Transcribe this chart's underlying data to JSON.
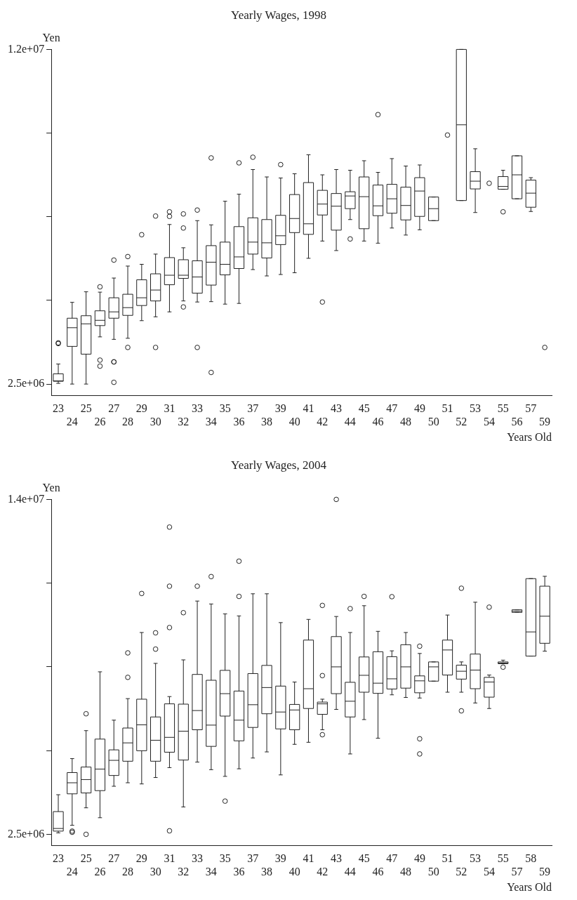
{
  "chart_data": [
    {
      "type": "box",
      "title": "Yearly Wages, 1998",
      "xlabel": "Years Old",
      "ylabel": "Yen",
      "categories": [
        "23",
        "24",
        "25",
        "26",
        "27",
        "28",
        "29",
        "30",
        "31",
        "32",
        "33",
        "34",
        "35",
        "36",
        "37",
        "38",
        "39",
        "40",
        "41",
        "42",
        "43",
        "44",
        "45",
        "46",
        "47",
        "48",
        "49",
        "50",
        "51",
        "52",
        "53",
        "54",
        "55",
        "56",
        "57",
        "59"
      ],
      "ylim": [
        2175000,
        12000000
      ],
      "yticks": [
        {
          "value": 2500000,
          "label": "2.5e+06"
        },
        {
          "value": 4875000,
          "label": null
        },
        {
          "value": 7250000,
          "label": null
        },
        {
          "value": 9625000,
          "label": null
        },
        {
          "value": 12000000,
          "label": "1.2e+07"
        }
      ],
      "boxes": [
        {
          "low": 2520000,
          "q1": 2580000,
          "median": 2590000,
          "q3": 2790000,
          "high": 3070000,
          "outliers": [
            3650000,
            3670000
          ]
        },
        {
          "low": 2500000,
          "q1": 3570000,
          "median": 4100000,
          "q3": 4370000,
          "high": 4820000
        },
        {
          "low": 2500000,
          "q1": 3350000,
          "median": 4210000,
          "q3": 4440000,
          "high": 5120000
        },
        {
          "low": 3840000,
          "q1": 4160000,
          "median": 4310000,
          "q3": 4580000,
          "high": 5110000,
          "outliers": [
            3010000,
            3180000,
            5260000
          ]
        },
        {
          "low": 3770000,
          "q1": 4370000,
          "median": 4550000,
          "q3": 4950000,
          "high": 5510000,
          "outliers": [
            2550000,
            3130000,
            3130000,
            6020000
          ]
        },
        {
          "low": 3800000,
          "q1": 4450000,
          "median": 4670000,
          "q3": 5050000,
          "high": 5850000,
          "outliers": [
            3540000,
            6120000
          ]
        },
        {
          "low": 4300000,
          "q1": 4730000,
          "median": 4950000,
          "q3": 5460000,
          "high": 5900000,
          "outliers": [
            6740000
          ]
        },
        {
          "low": 4410000,
          "q1": 4860000,
          "median": 5170000,
          "q3": 5630000,
          "high": 6190000,
          "outliers": [
            3540000,
            7270000
          ]
        },
        {
          "low": 4550000,
          "q1": 5320000,
          "median": 5590000,
          "q3": 6090000,
          "high": 7030000,
          "outliers": [
            7260000,
            7390000
          ]
        },
        {
          "low": 4860000,
          "q1": 5500000,
          "median": 5590000,
          "q3": 6030000,
          "high": 6370000,
          "outliers": [
            4690000,
            6930000,
            7330000
          ]
        },
        {
          "low": 4830000,
          "q1": 5080000,
          "median": 5540000,
          "q3": 6000000,
          "high": 7140000,
          "outliers": [
            3540000,
            7440000
          ]
        },
        {
          "low": 4840000,
          "q1": 5310000,
          "median": 5960000,
          "q3": 6430000,
          "high": 7020000,
          "outliers": [
            2830000,
            8920000
          ]
        },
        {
          "low": 4770000,
          "q1": 5600000,
          "median": 5900000,
          "q3": 6530000,
          "high": 7690000
        },
        {
          "low": 4790000,
          "q1": 5780000,
          "median": 6110000,
          "q3": 6970000,
          "high": 7890000,
          "outliers": [
            8780000
          ]
        },
        {
          "low": 5750000,
          "q1": 6190000,
          "median": 6530000,
          "q3": 7220000,
          "high": 8590000,
          "outliers": [
            8940000
          ]
        },
        {
          "low": 5570000,
          "q1": 6080000,
          "median": 6510000,
          "q3": 7170000,
          "high": 8380000
        },
        {
          "low": 5610000,
          "q1": 6460000,
          "median": 6710000,
          "q3": 7290000,
          "high": 8350000,
          "outliers": [
            8730000
          ]
        },
        {
          "low": 5660000,
          "q1": 6800000,
          "median": 7200000,
          "q3": 7880000,
          "high": 8470000
        },
        {
          "low": 6070000,
          "q1": 6750000,
          "median": 7050000,
          "q3": 8220000,
          "high": 9010000
        },
        {
          "low": 6560000,
          "q1": 7300000,
          "median": 7610000,
          "q3": 8000000,
          "high": 8440000,
          "outliers": [
            4830000
          ]
        },
        {
          "low": 6290000,
          "q1": 6870000,
          "median": 7550000,
          "q3": 7910000,
          "high": 8590000
        },
        {
          "low": 7170000,
          "q1": 7480000,
          "median": 7840000,
          "q3": 7960000,
          "high": 8570000,
          "outliers": [
            6620000
          ]
        },
        {
          "low": 6560000,
          "q1": 6910000,
          "median": 7820000,
          "q3": 8380000,
          "high": 8840000
        },
        {
          "low": 6500000,
          "q1": 7280000,
          "median": 7560000,
          "q3": 8150000,
          "high": 8510000,
          "outliers": [
            10150000
          ]
        },
        {
          "low": 6930000,
          "q1": 7350000,
          "median": 7760000,
          "q3": 8170000,
          "high": 8900000
        },
        {
          "low": 6730000,
          "q1": 7160000,
          "median": 7570000,
          "q3": 8090000,
          "high": 8690000
        },
        {
          "low": 6880000,
          "q1": 7260000,
          "median": 7980000,
          "q3": 8360000,
          "high": 8720000
        },
        {
          "low": 7140000,
          "q1": 7140000,
          "median": 7480000,
          "q3": 7810000,
          "high": 7810000
        },
        null,
        {
          "low": 7710000,
          "q1": 7710000,
          "median": 9860000,
          "q3": 12000000,
          "high": 12000000
        },
        {
          "low": 7370000,
          "q1": 8040000,
          "median": 8260000,
          "q3": 8530000,
          "high": 9180000
        },
        null,
        {
          "low": 8030000,
          "q1": 8030000,
          "median": 8110000,
          "q3": 8390000,
          "high": 8570000,
          "outliers": [
            7390000
          ]
        },
        {
          "low": 7760000,
          "q1": 7760000,
          "median": 8440000,
          "q3": 8980000,
          "high": 8980000
        },
        {
          "low": 7400000,
          "q1": 7520000,
          "median": 7920000,
          "q3": 8290000,
          "high": 8360000
        },
        null
      ],
      "series": [
        {
          "type": "scatter",
          "marker": "circle",
          "color": "#222222",
          "x": [
            "51",
            "54",
            "59"
          ],
          "values": [
            9570000,
            8200000,
            3540000
          ]
        }
      ]
    },
    {
      "type": "box",
      "title": "Yearly Wages, 2004",
      "xlabel": "Years Old",
      "ylabel": "Yen",
      "categories": [
        "23",
        "24",
        "25",
        "26",
        "27",
        "28",
        "29",
        "30",
        "31",
        "32",
        "33",
        "34",
        "35",
        "36",
        "37",
        "38",
        "39",
        "40",
        "41",
        "42",
        "43",
        "44",
        "45",
        "46",
        "47",
        "48",
        "49",
        "50",
        "51",
        "52",
        "53",
        "54",
        "55",
        "57",
        "58",
        "59"
      ],
      "ylim": [
        2115000,
        14000000
      ],
      "yticks": [
        {
          "value": 2500000,
          "label": "2.5e+06"
        },
        {
          "value": 5375000,
          "label": null
        },
        {
          "value": 8250000,
          "label": null
        },
        {
          "value": 11125000,
          "label": null
        },
        {
          "value": 14000000,
          "label": "1.4e+07"
        }
      ],
      "boxes": [
        {
          "low": 2550000,
          "q1": 2610000,
          "median": 2700000,
          "q3": 3280000,
          "high": 3860000
        },
        {
          "low": 2810000,
          "q1": 3890000,
          "median": 4270000,
          "q3": 4620000,
          "high": 5100000,
          "outliers": [
            2570000,
            2610000
          ]
        },
        {
          "low": 3410000,
          "q1": 3920000,
          "median": 4380000,
          "q3": 4810000,
          "high": 6060000,
          "outliers": [
            2500000,
            6640000
          ]
        },
        {
          "low": 3070000,
          "q1": 4000000,
          "median": 4740000,
          "q3": 5770000,
          "high": 8080000
        },
        {
          "low": 4150000,
          "q1": 4520000,
          "median": 5040000,
          "q3": 5400000,
          "high": 6420000
        },
        {
          "low": 4270000,
          "q1": 5010000,
          "median": 5640000,
          "q3": 6150000,
          "high": 7160000,
          "outliers": [
            7890000,
            8730000
          ]
        },
        {
          "low": 4230000,
          "q1": 5370000,
          "median": 6260000,
          "q3": 7140000,
          "high": 9430000,
          "outliers": [
            10770000
          ]
        },
        {
          "low": 4450000,
          "q1": 5010000,
          "median": 5730000,
          "q3": 6530000,
          "high": 8370000,
          "outliers": [
            8860000,
            9420000
          ]
        },
        {
          "low": 4790000,
          "q1": 5320000,
          "median": 5830000,
          "q3": 6980000,
          "high": 7230000,
          "outliers": [
            2620000,
            9600000,
            11020000,
            13050000
          ]
        },
        {
          "low": 3440000,
          "q1": 5050000,
          "median": 6040000,
          "q3": 6970000,
          "high": 8490000,
          "outliers": [
            10110000
          ]
        },
        {
          "low": 4980000,
          "q1": 6090000,
          "median": 6750000,
          "q3": 7990000,
          "high": 10510000,
          "outliers": [
            11020000
          ]
        },
        {
          "low": 4720000,
          "q1": 5520000,
          "median": 6250000,
          "q3": 7790000,
          "high": 10410000,
          "outliers": [
            11350000
          ]
        },
        {
          "low": 4490000,
          "q1": 6560000,
          "median": 7330000,
          "q3": 8130000,
          "high": 10070000,
          "outliers": [
            3640000
          ]
        },
        {
          "low": 4750000,
          "q1": 5710000,
          "median": 6420000,
          "q3": 7420000,
          "high": 10000000,
          "outliers": [
            10670000,
            11880000
          ]
        },
        {
          "low": 5120000,
          "q1": 6170000,
          "median": 6950000,
          "q3": 8020000,
          "high": 10760000
        },
        {
          "low": 5330000,
          "q1": 6640000,
          "median": 7540000,
          "q3": 8300000,
          "high": 10760000
        },
        {
          "low": 4540000,
          "q1": 6120000,
          "median": 6700000,
          "q3": 7590000,
          "high": 9770000
        },
        {
          "low": 5590000,
          "q1": 6090000,
          "median": 6770000,
          "q3": 6960000,
          "high": 7730000
        },
        {
          "low": 5660000,
          "q1": 6820000,
          "median": 7500000,
          "q3": 9170000,
          "high": 9880000
        },
        {
          "low": 6090000,
          "q1": 6620000,
          "median": 6980000,
          "q3": 7040000,
          "high": 7140000,
          "outliers": [
            5920000,
            7950000,
            10360000
          ]
        },
        {
          "low": 6790000,
          "q1": 7330000,
          "median": 8250000,
          "q3": 9290000,
          "high": 9980000,
          "outliers": [
            14000000
          ]
        },
        {
          "low": 5260000,
          "q1": 6530000,
          "median": 7070000,
          "q3": 7720000,
          "high": 9430000,
          "outliers": [
            10250000
          ]
        },
        {
          "low": 6440000,
          "q1": 7380000,
          "median": 7960000,
          "q3": 8590000,
          "high": 10350000,
          "outliers": [
            10670000
          ]
        },
        {
          "low": 5800000,
          "q1": 7340000,
          "median": 7690000,
          "q3": 8770000,
          "high": 9470000
        },
        {
          "low": 7290000,
          "q1": 7490000,
          "median": 7840000,
          "q3": 8600000,
          "high": 8800000,
          "outliers": [
            10660000
          ]
        },
        {
          "low": 7200000,
          "q1": 7520000,
          "median": 8250000,
          "q3": 9010000,
          "high": 9430000
        },
        {
          "low": 7180000,
          "q1": 7360000,
          "median": 7770000,
          "q3": 7940000,
          "high": 8710000,
          "outliers": [
            5260000,
            5780000,
            8960000
          ]
        },
        {
          "low": 7760000,
          "q1": 7760000,
          "median": 8250000,
          "q3": 8420000,
          "high": 8420000
        },
        {
          "low": 7380000,
          "q1": 7970000,
          "median": 8830000,
          "q3": 9170000,
          "high": 10030000
        },
        {
          "low": 7380000,
          "q1": 7830000,
          "median": 8100000,
          "q3": 8310000,
          "high": 8420000,
          "outliers": [
            6740000,
            10950000
          ]
        },
        {
          "low": 7010000,
          "q1": 7500000,
          "median": 8140000,
          "q3": 8690000,
          "high": 10470000
        },
        {
          "low": 6820000,
          "q1": 7210000,
          "median": 7730000,
          "q3": 7890000,
          "high": 7970000,
          "outliers": [
            10300000
          ]
        },
        {
          "low": 8360000,
          "q1": 8360000,
          "median": 8380000,
          "q3": 8420000,
          "high": 8480000,
          "outliers": [
            8240000
          ]
        },
        {
          "low": 10120000,
          "q1": 10120000,
          "median": 10160000,
          "q3": 10210000,
          "high": 10210000
        },
        {
          "low": 8620000,
          "q1": 8620000,
          "median": 9450000,
          "q3": 11280000,
          "high": 11280000
        },
        {
          "low": 8790000,
          "q1": 9060000,
          "median": 9990000,
          "q3": 11020000,
          "high": 11360000
        }
      ]
    }
  ]
}
